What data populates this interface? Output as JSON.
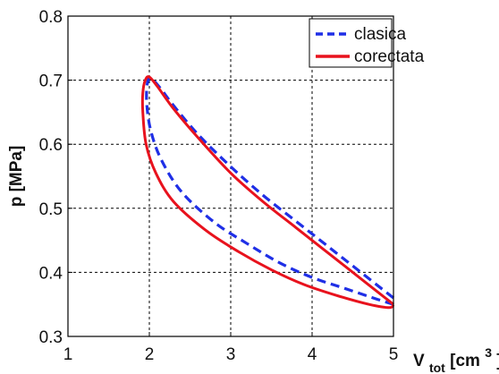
{
  "chart_data": {
    "type": "line",
    "xlabel_main": "V",
    "xlabel_sub": "tot",
    "xlabel_unit": "[cm",
    "xlabel_sup": "3",
    "xlabel_close": "]",
    "ylabel": "p [MPa]",
    "xlim": [
      1,
      5
    ],
    "ylim": [
      0.3,
      0.8
    ],
    "x_ticks": [
      "1",
      "2",
      "3",
      "4",
      "5"
    ],
    "y_ticks": [
      "0.3",
      "0.4",
      "0.5",
      "0.6",
      "0.7",
      "0.8"
    ],
    "grid": true,
    "legend_position": "top-right",
    "series": [
      {
        "name": "clasica",
        "style": "dashed",
        "color": "#1f2fe6",
        "x": [
          5.0,
          4.6,
          4.2,
          3.8,
          3.4,
          3.0,
          2.6,
          2.3,
          2.15,
          2.05,
          2.0,
          1.97,
          1.97,
          2.02,
          2.15,
          2.4,
          2.8,
          3.2,
          3.6,
          4.0,
          4.4,
          4.8,
          5.0
        ],
        "y": [
          0.36,
          0.4,
          0.44,
          0.48,
          0.52,
          0.565,
          0.615,
          0.66,
          0.685,
          0.7,
          0.703,
          0.69,
          0.66,
          0.62,
          0.575,
          0.525,
          0.478,
          0.445,
          0.415,
          0.392,
          0.375,
          0.358,
          0.35
        ]
      },
      {
        "name": "corectata",
        "style": "solid",
        "color": "#e8121d",
        "x": [
          5.0,
          4.6,
          4.2,
          3.8,
          3.4,
          3.0,
          2.6,
          2.3,
          2.1,
          2.0,
          1.95,
          1.92,
          1.92,
          1.96,
          2.08,
          2.3,
          2.7,
          3.1,
          3.5,
          3.9,
          4.3,
          4.7,
          4.95,
          5.0
        ],
        "y": [
          0.35,
          0.39,
          0.43,
          0.47,
          0.51,
          0.555,
          0.61,
          0.655,
          0.69,
          0.705,
          0.7,
          0.68,
          0.65,
          0.6,
          0.555,
          0.51,
          0.465,
          0.432,
          0.404,
          0.381,
          0.364,
          0.35,
          0.345,
          0.35
        ]
      }
    ]
  }
}
